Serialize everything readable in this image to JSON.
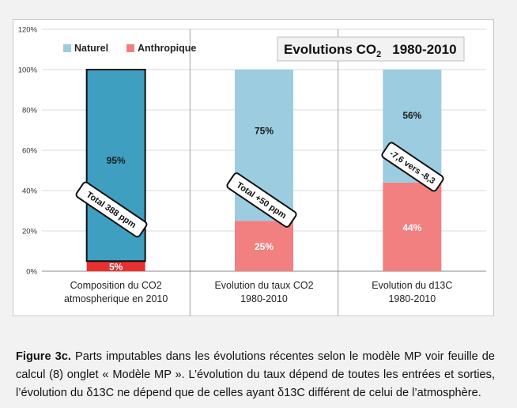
{
  "chart_data": {
    "type": "bar",
    "stacked": true,
    "title": "Evolutions CO",
    "title_subscript": "2",
    "title_period": "1980-2010",
    "categories": [
      [
        "Composition du CO2",
        "atmospherique en 2010"
      ],
      [
        "Evolution du taux CO2",
        "1980-2010"
      ],
      [
        "Evolution du d13C",
        "1980-2010"
      ]
    ],
    "ylim": [
      0,
      120
    ],
    "yticks": [
      0,
      20,
      40,
      60,
      80,
      100,
      120
    ],
    "ytick_suffix": "%",
    "legend_position": "top-left",
    "series": [
      {
        "name": "Anthropique",
        "values": [
          5,
          25,
          44
        ],
        "labels": [
          "5%",
          "25%",
          "44%"
        ]
      },
      {
        "name": "Naturel",
        "values": [
          95,
          75,
          56
        ],
        "labels": [
          "95%",
          "75%",
          "56%"
        ]
      }
    ],
    "annotations": [
      "Total 388 ppm",
      "Total +50 ppm",
      "-7,6 vers -8,3"
    ]
  },
  "colors": {
    "anthro": [
      "#e8312f",
      "#f28080",
      "#f28080"
    ],
    "naturel": [
      "#3e9fc0",
      "#9ccce0",
      "#9ccce0"
    ],
    "legend_naturel": "#9ccce0",
    "legend_anthro": "#f28080",
    "grid": "#d9d9d9",
    "separator": "#a0a0a0"
  },
  "caption": {
    "figure_label": "Figure 3c.",
    "text": " Parts imputables dans les évolutions récentes  selon le modèle MP voir feuille de calcul (8) onglet « Modèle MP ». L’évolution du taux dépend de toutes les entrées et sorties, l’évolution du δ13C ne dépend que de celles ayant δ13C différent de celui de l’atmosphère."
  }
}
